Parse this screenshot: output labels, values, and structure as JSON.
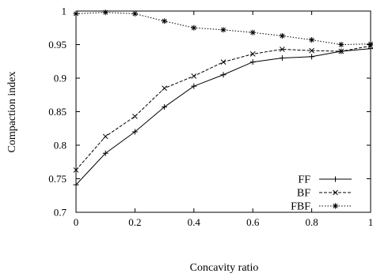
{
  "chart_data": {
    "type": "line",
    "title": "",
    "xlabel": "Concavity ratio",
    "ylabel": "Compaction index",
    "xlim": [
      0,
      1
    ],
    "ylim": [
      0.7,
      1
    ],
    "xticks": [
      0,
      0.2,
      0.4,
      0.6,
      0.8,
      1
    ],
    "xtick_labels": [
      "0",
      "0.2",
      "0.4",
      "0.6",
      "0.8",
      "1"
    ],
    "yticks": [
      0.7,
      0.75,
      0.8,
      0.85,
      0.9,
      0.95,
      1
    ],
    "ytick_labels": [
      "0.7",
      "0.75",
      "0.8",
      "0.85",
      "0.9",
      "0.95",
      "1"
    ],
    "grid": false,
    "legend_position": "bottom-right",
    "x": [
      0,
      0.1,
      0.2,
      0.3,
      0.4,
      0.5,
      0.6,
      0.7,
      0.8,
      0.9,
      1.0
    ],
    "series": [
      {
        "name": "FF",
        "values": [
          0.741,
          0.788,
          0.82,
          0.857,
          0.888,
          0.905,
          0.924,
          0.93,
          0.932,
          0.94,
          0.944
        ],
        "line_style": "solid",
        "marker": "plus",
        "color": "#000000"
      },
      {
        "name": "BF",
        "values": [
          0.763,
          0.813,
          0.843,
          0.885,
          0.903,
          0.924,
          0.936,
          0.943,
          0.941,
          0.94,
          0.948
        ],
        "line_style": "dashed",
        "marker": "cross",
        "color": "#000000"
      },
      {
        "name": "FBF",
        "values": [
          0.996,
          0.998,
          0.996,
          0.985,
          0.975,
          0.972,
          0.968,
          0.963,
          0.957,
          0.95,
          0.951
        ],
        "line_style": "dotted",
        "marker": "star",
        "color": "#000000"
      }
    ]
  }
}
